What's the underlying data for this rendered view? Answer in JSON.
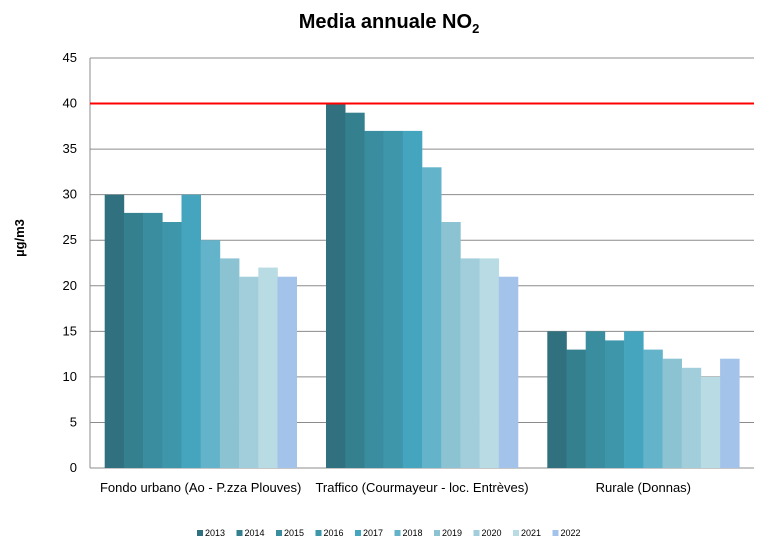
{
  "chart_data": {
    "type": "bar",
    "title": "Media annuale NO",
    "title_subscript": "2",
    "xlabel": "",
    "ylabel": "µg/m3",
    "ylim": [
      0,
      45
    ],
    "yticks": [
      "0",
      "5",
      "10",
      "15",
      "20",
      "25",
      "30",
      "35",
      "40",
      "45"
    ],
    "grid": true,
    "legend_position": "bottom",
    "categories": [
      "Fondo urbano (Ao - P.zza Plouves)",
      "Traffico (Courmayeur - loc. Entrèves)",
      "Rurale (Donnas)"
    ],
    "series": [
      {
        "name": "2013",
        "color": "#31707e",
        "values": [
          30,
          40,
          15
        ]
      },
      {
        "name": "2014",
        "color": "#35808f",
        "values": [
          28,
          39,
          13
        ]
      },
      {
        "name": "2015",
        "color": "#3a8c9f",
        "values": [
          28,
          37,
          15
        ]
      },
      {
        "name": "2016",
        "color": "#3e96ab",
        "values": [
          27,
          37,
          14
        ]
      },
      {
        "name": "2017",
        "color": "#45a5be",
        "values": [
          30,
          37,
          15
        ]
      },
      {
        "name": "2018",
        "color": "#63b3cb",
        "values": [
          25,
          33,
          13
        ]
      },
      {
        "name": "2019",
        "color": "#8bc3d3",
        "values": [
          23,
          27,
          12
        ]
      },
      {
        "name": "2020",
        "color": "#a2cedb",
        "values": [
          21,
          23,
          11
        ]
      },
      {
        "name": "2021",
        "color": "#b9dbe4",
        "values": [
          22,
          23,
          10
        ]
      },
      {
        "name": "2022",
        "color": "#a4c3ea",
        "values": [
          21,
          21,
          12
        ]
      }
    ],
    "reference_line": {
      "value": 40,
      "color": "#ff0000"
    }
  }
}
